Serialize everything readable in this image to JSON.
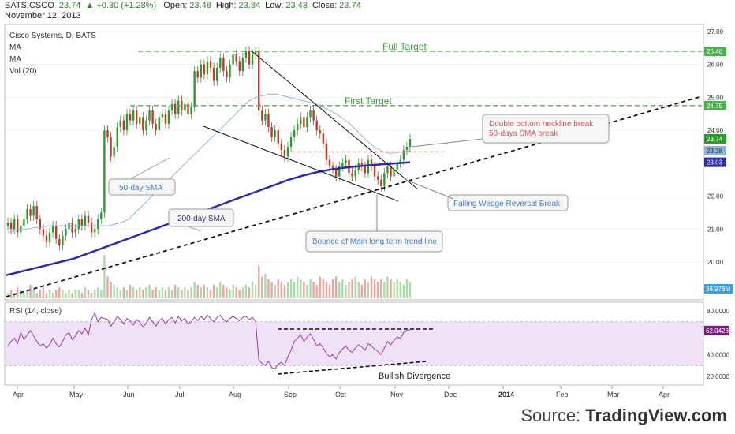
{
  "header": {
    "symbol": "BATS:CSCO",
    "last": "23.74",
    "change": "+0.30 (+1.28%)",
    "open_label": "Open:",
    "open": "23.48",
    "high_label": "High:",
    "high": "23.84",
    "low_label": "Low:",
    "low": "23.43",
    "close_label": "Close:",
    "close": "23.74",
    "date": "November 12, 2013"
  },
  "legend": {
    "title": "Cisco Systems, D, BATS",
    "ma1": "MA",
    "ma2": "MA",
    "vol": "Vol (20)"
  },
  "rsi_legend": "RSI (14, close)",
  "annotations": {
    "full_target": "Full Target",
    "first_target": "First Target",
    "double_bottom_1": "Double bottom neckline break",
    "double_bottom_2": "50-days SMA break",
    "falling_wedge": "Falling Wedge Reversal Break",
    "bounce": "Bounce of Main long term trend line",
    "sma50": "50-day SMA",
    "sma200": "200-day SMA",
    "bullish_div": "Bullish Divergence"
  },
  "price_axis": {
    "ticks": [
      "27.00",
      "26.00",
      "25.00",
      "24.00",
      "22.00",
      "21.00",
      "20.00"
    ],
    "tick_values": [
      27,
      26,
      25,
      24,
      22,
      21,
      20
    ],
    "badges": [
      {
        "label": "26.40",
        "value": 26.4,
        "color": "#4caf50"
      },
      {
        "label": "24.75",
        "value": 24.75,
        "color": "#4caf50"
      },
      {
        "label": "23.74",
        "value": 23.74,
        "color": "#2e9a2e"
      },
      {
        "label": "23.38",
        "value": 23.38,
        "color": "#8fb3d9"
      },
      {
        "label": "23.03",
        "value": 23.03,
        "color": "#2c2ca8"
      }
    ],
    "volume_badge": "38.978M",
    "volume_badge_color": "#3aa0d8"
  },
  "rsi_axis": {
    "ticks": [
      "80.0000",
      "40.0000",
      "20.0000"
    ],
    "tick_values": [
      80,
      40,
      20
    ],
    "badge": "62.0428",
    "badge_value": 62.04,
    "badge_color": "#7a1a7a"
  },
  "time_axis": {
    "labels": [
      "Apr",
      "May",
      "Jun",
      "Jul",
      "Aug",
      "Sep",
      "Oct",
      "Nov",
      "Dec",
      "2014",
      "Feb",
      "Mar",
      "Apr"
    ]
  },
  "watermark": {
    "prefix": "Source: ",
    "brand": "TradingView.com"
  },
  "colors": {
    "up": "#2e9a2e",
    "down": "#c0392b",
    "sma50": "#8fb3d9",
    "sma200": "#2c2ca8",
    "target": "#36c436",
    "rsi_line": "#9c3aa8",
    "rsi_band": "#e8d6f2"
  },
  "chart_data": {
    "type": "candlestick",
    "symbol": "BATS:CSCO",
    "price_range": [
      19.5,
      27.2
    ],
    "price_levels": {
      "full_target": 26.4,
      "first_target": 24.75,
      "neckline": 23.35
    },
    "closes": [
      21.2,
      21.0,
      21.3,
      20.9,
      21.1,
      21.3,
      21.6,
      21.4,
      21.7,
      21.3,
      21.0,
      20.8,
      20.6,
      20.9,
      21.1,
      20.7,
      20.5,
      20.8,
      21.0,
      21.2,
      20.9,
      21.0,
      21.3,
      21.1,
      21.4,
      21.2,
      20.9,
      21.0,
      21.3,
      21.5,
      24.0,
      23.8,
      23.2,
      23.5,
      24.1,
      24.3,
      24.0,
      24.5,
      24.3,
      24.6,
      24.2,
      24.4,
      24.0,
      24.3,
      24.6,
      24.2,
      24.0,
      24.4,
      24.5,
      24.2,
      24.6,
      24.8,
      24.5,
      24.9,
      24.6,
      24.8,
      24.5,
      24.7,
      25.8,
      25.6,
      26.0,
      25.7,
      26.1,
      25.9,
      25.5,
      25.9,
      26.2,
      25.8,
      25.6,
      26.0,
      26.3,
      26.1,
      25.8,
      26.2,
      26.4,
      26.0,
      26.3,
      26.4,
      24.6,
      24.3,
      24.5,
      24.1,
      23.8,
      24.0,
      23.6,
      23.4,
      23.2,
      23.5,
      23.8,
      24.0,
      24.2,
      24.4,
      24.1,
      24.4,
      24.6,
      24.3,
      24.0,
      23.9,
      23.6,
      23.1,
      22.9,
      22.8,
      22.6,
      22.9,
      23.0,
      23.1,
      22.7,
      22.6,
      22.8,
      23.0,
      22.9,
      22.7,
      23.1,
      22.9,
      22.6,
      22.5,
      22.3,
      22.7,
      22.9,
      22.6,
      22.8,
      23.0,
      23.1,
      23.4,
      23.5,
      23.74
    ],
    "rsi": [
      48,
      52,
      55,
      50,
      60,
      54,
      58,
      62,
      57,
      52,
      48,
      50,
      46,
      49,
      55,
      50,
      47,
      52,
      58,
      60,
      54,
      57,
      62,
      59,
      64,
      58,
      72,
      78,
      70,
      74,
      73,
      72,
      66,
      70,
      75,
      72,
      68,
      73,
      71,
      67,
      72,
      70,
      65,
      69,
      74,
      70,
      66,
      71,
      73,
      68,
      72,
      74,
      69,
      75,
      71,
      73,
      68,
      70,
      74,
      71,
      75,
      72,
      76,
      73,
      70,
      74,
      76,
      72,
      70,
      73,
      75,
      73,
      71,
      74,
      75,
      72,
      74,
      70,
      35,
      32,
      30,
      34,
      28,
      27,
      31,
      33,
      30,
      38,
      44,
      52,
      55,
      58,
      52,
      56,
      59,
      54,
      48,
      50,
      46,
      41,
      38,
      40,
      36,
      42,
      45,
      48,
      44,
      42,
      46,
      49,
      47,
      44,
      50,
      48,
      45,
      43,
      40,
      46,
      52,
      49,
      53,
      56,
      55,
      60,
      62,
      62.04
    ],
    "sma50": [
      20.9,
      20.95,
      21.0,
      21.0,
      21.05,
      21.05,
      21.1,
      21.1,
      21.1,
      21.1,
      21.1,
      21.1,
      21.1,
      21.1,
      21.1,
      21.1,
      21.15,
      21.2,
      21.3,
      21.5,
      21.7,
      21.9,
      22.1,
      22.3,
      22.5,
      22.7,
      22.9,
      23.1,
      23.3,
      23.5,
      23.7,
      23.9,
      24.1,
      24.3,
      24.5,
      24.7,
      24.9,
      25.0,
      25.05,
      25.1,
      25.1,
      25.05,
      25.0,
      24.95,
      24.9,
      24.85,
      24.8,
      24.7,
      24.6,
      24.5,
      24.35,
      24.2,
      24.0,
      23.8,
      23.6,
      23.45,
      23.35,
      23.3,
      23.32,
      23.35,
      23.38
    ],
    "sma200": [
      19.6,
      19.7,
      19.8,
      19.9,
      20.0,
      20.1,
      20.25,
      20.4,
      20.55,
      20.7,
      20.85,
      21.0,
      21.15,
      21.3,
      21.45,
      21.6,
      21.75,
      21.9,
      22.05,
      22.2,
      22.35,
      22.5,
      22.62,
      22.72,
      22.8,
      22.86,
      22.9,
      22.94,
      22.97,
      23.0,
      23.03
    ],
    "volume": [
      2,
      3,
      2,
      4,
      3,
      2,
      3,
      5,
      3,
      2,
      3,
      4,
      2,
      3,
      2,
      3,
      4,
      3,
      2,
      3,
      2,
      3,
      3,
      2,
      4,
      3,
      2,
      3,
      4,
      3,
      16,
      8,
      6,
      5,
      4,
      3,
      4,
      3,
      5,
      4,
      3,
      4,
      3,
      4,
      5,
      3,
      4,
      3,
      4,
      3,
      4,
      3,
      5,
      4,
      3,
      4,
      3,
      4,
      6,
      5,
      4,
      5,
      4,
      3,
      5,
      4,
      6,
      5,
      4,
      3,
      5,
      4,
      3,
      4,
      5,
      4,
      6,
      5,
      12,
      8,
      9,
      7,
      6,
      5,
      7,
      6,
      5,
      6,
      7,
      6,
      8,
      7,
      6,
      5,
      7,
      6,
      5,
      8,
      7,
      6,
      5,
      7,
      8,
      6,
      7,
      5,
      6,
      7,
      8,
      6,
      5,
      7,
      6,
      8,
      7,
      6,
      7,
      6,
      8,
      7,
      6,
      7,
      6,
      5,
      7,
      6
    ]
  }
}
